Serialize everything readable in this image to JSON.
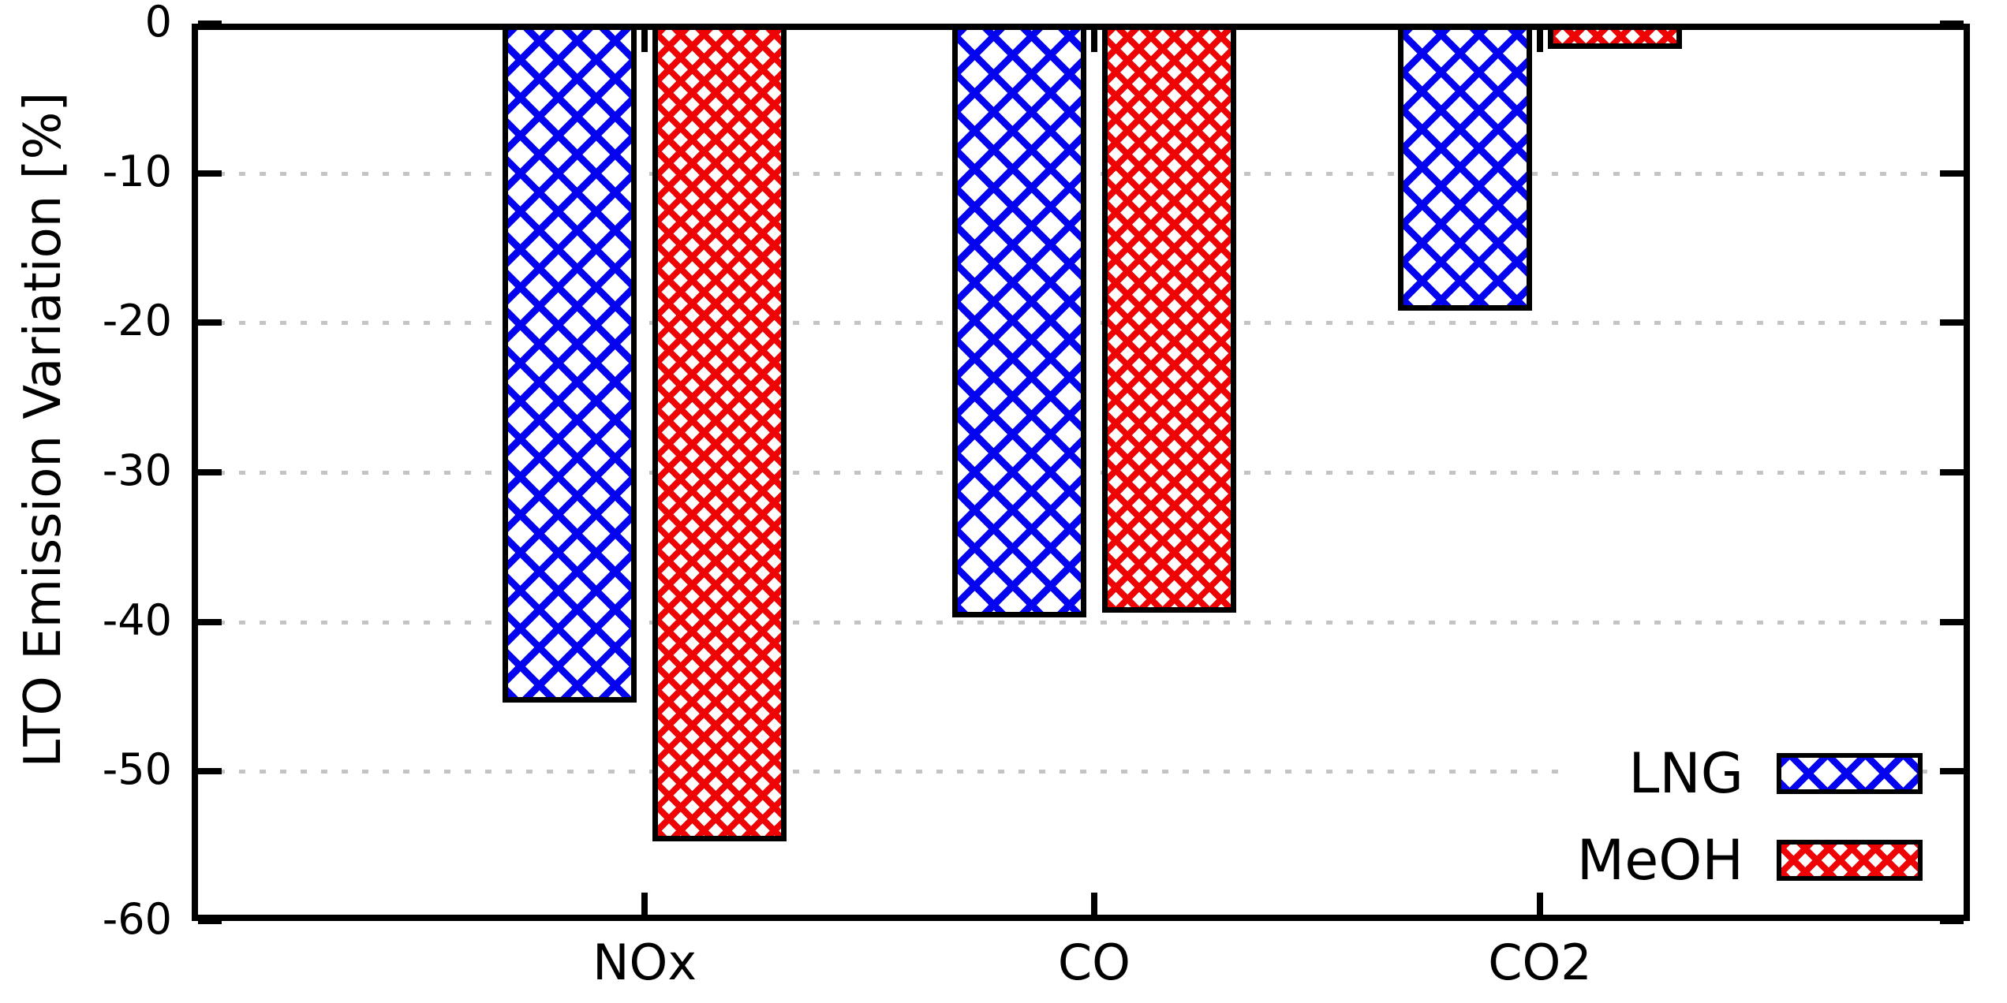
{
  "chart_data": {
    "type": "bar",
    "title": "",
    "xlabel": "",
    "ylabel": "LTO Emission Variation [%]",
    "categories": [
      "NOx",
      "CO",
      "CO2"
    ],
    "series": [
      {
        "name": "LNG",
        "color": "#0000ee",
        "pattern": "blue-coarse-crosshatch",
        "values": [
          -45.4,
          -39.7,
          -19.2
        ]
      },
      {
        "name": "MeOH",
        "color": "#ee0000",
        "pattern": "red-fine-crosshatch",
        "values": [
          -54.7,
          -39.4,
          -1.7
        ]
      }
    ],
    "ylim": [
      -60,
      0
    ],
    "ytick_labels": [
      "0",
      "-10",
      "-20",
      "-30",
      "-40",
      "-50",
      "-60"
    ],
    "gridline_values": [
      -10,
      -20,
      -30,
      -40,
      -50
    ],
    "grid": "horizontal dotted gray lines",
    "legend_position": "inside bottom-right",
    "frame_color": "#000000",
    "gridline_color": "#c4c4c4",
    "background_color": "#ffffff"
  }
}
